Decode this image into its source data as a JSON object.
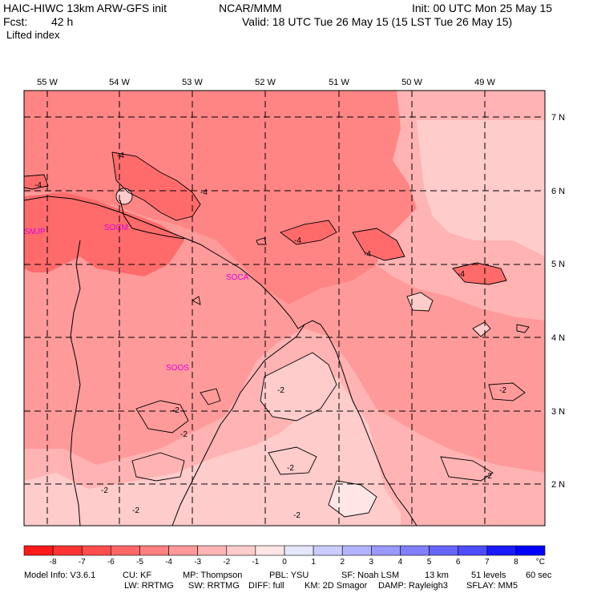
{
  "header": {
    "model_line": "HAIC-HIWC 13km ARW-GFS init",
    "org": "NCAR/MMM",
    "init": "Init: 00 UTC Mon 25 May 15",
    "fcst_label": "Fcst:",
    "fcst_value": "42 h",
    "valid": "Valid: 18 UTC Tue 26 May 15 (15 LST Tue 26 May 15)",
    "field": "Lifted index"
  },
  "map": {
    "lon_labels": [
      "55 W",
      "54 W",
      "53 W",
      "52 W",
      "51 W",
      "50 W",
      "49 W"
    ],
    "lat_labels": [
      "7 N",
      "6 N",
      "5 N",
      "4 N",
      "3 N",
      "2 N"
    ],
    "stations": [
      "SMJP",
      "SOCM",
      "SOCA",
      "SOOS"
    ],
    "contour_labels": [
      "-4",
      "-4",
      "-4",
      "-4",
      "-4",
      "-4",
      "-2",
      "-2",
      "-2",
      "-2",
      "-2",
      "-2",
      "-2",
      "-2",
      "-2"
    ]
  },
  "colorbar": {
    "ticks": [
      "-8",
      "-7",
      "-6",
      "-5",
      "-4",
      "-3",
      "-2",
      "-1",
      "0",
      "1",
      "2",
      "3",
      "4",
      "5",
      "6",
      "7",
      "8"
    ],
    "unit": "°C",
    "colors": [
      "#ff1a1a",
      "#ff3333",
      "#ff4d4d",
      "#ff6666",
      "#ff8080",
      "#ff9999",
      "#ffb3b3",
      "#ffcccc",
      "#ffe6e6",
      "#e6e6ff",
      "#ccccff",
      "#b3b3ff",
      "#9999ff",
      "#8080ff",
      "#6666ff",
      "#4d4dff",
      "#1a1aff",
      "#0000ff"
    ]
  },
  "footer": {
    "line1": [
      "Model Info: V3.6.1",
      "CU: KF",
      "MP: Thompson",
      "PBL: YSU",
      "SF: Noah LSM",
      "13 km",
      "51 levels",
      "60 sec"
    ],
    "line2": [
      "LW: RRTMG",
      "SW: RRTMG",
      "DIFF: full",
      "KM: 2D Smagor",
      "DAMP: Rayleigh3",
      "SFLAY: MM5"
    ]
  }
}
